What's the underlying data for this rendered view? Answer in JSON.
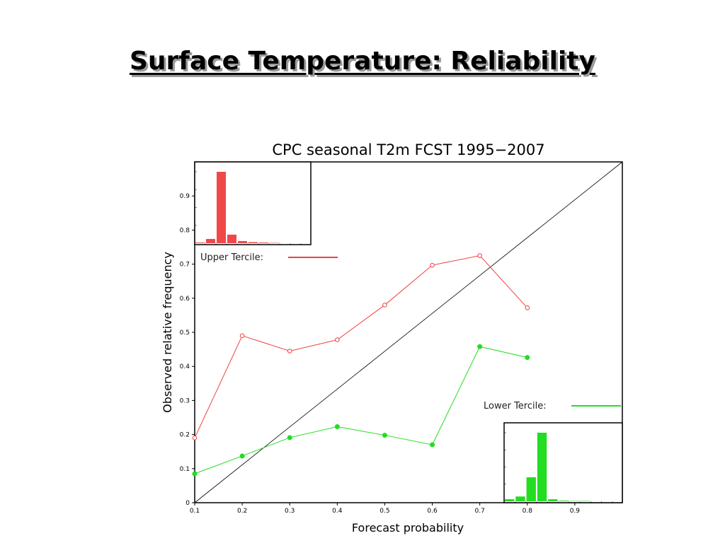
{
  "slide": {
    "title": "Surface Temperature: Reliability"
  },
  "chart_data": {
    "type": "line",
    "title": "CPC seasonal T2m FCST 1995−2007",
    "xlabel": "Forecast probability",
    "ylabel": "Observed relative frequency",
    "xlim": [
      0.1,
      1.0
    ],
    "ylim": [
      0,
      1.0
    ],
    "xticks": [
      "0.1",
      "0.2",
      "0.3",
      "0.4",
      "0.5",
      "0.6",
      "0.7",
      "0.8",
      "0.9"
    ],
    "yticks": [
      "0",
      "0.1",
      "0.2",
      "0.3",
      "0.4",
      "0.5",
      "0.6",
      "0.7",
      "0.8",
      "0.9"
    ],
    "diagonal": true,
    "series": [
      {
        "name": "Upper Tercile:",
        "color": "#f04040",
        "marker": "open-circle",
        "x": [
          0.1,
          0.2,
          0.3,
          0.4,
          0.5,
          0.6,
          0.7,
          0.8
        ],
        "y": [
          0.19,
          0.49,
          0.445,
          0.478,
          0.58,
          0.697,
          0.725,
          0.572
        ]
      },
      {
        "name": "Lower Tercile:",
        "color": "#22dd22",
        "marker": "filled-circle",
        "x": [
          0.1,
          0.2,
          0.3,
          0.4,
          0.5,
          0.6,
          0.7,
          0.8
        ],
        "y": [
          0.085,
          0.137,
          0.191,
          0.223,
          0.198,
          0.17,
          0.458,
          0.426
        ]
      }
    ],
    "insets": [
      {
        "series": "Upper Tercile:",
        "placement": "top-left",
        "color": "#f04848",
        "values": [
          0.01,
          0.06,
          1.0,
          0.12,
          0.03,
          0.015,
          0.01,
          0.005,
          0.0,
          0.0
        ]
      },
      {
        "series": "Lower Tercile:",
        "placement": "bottom-right",
        "color": "#22dd22",
        "values": [
          0.03,
          0.07,
          0.35,
          1.0,
          0.03,
          0.01,
          0.005,
          0.005,
          0.0,
          0.0
        ]
      }
    ]
  }
}
